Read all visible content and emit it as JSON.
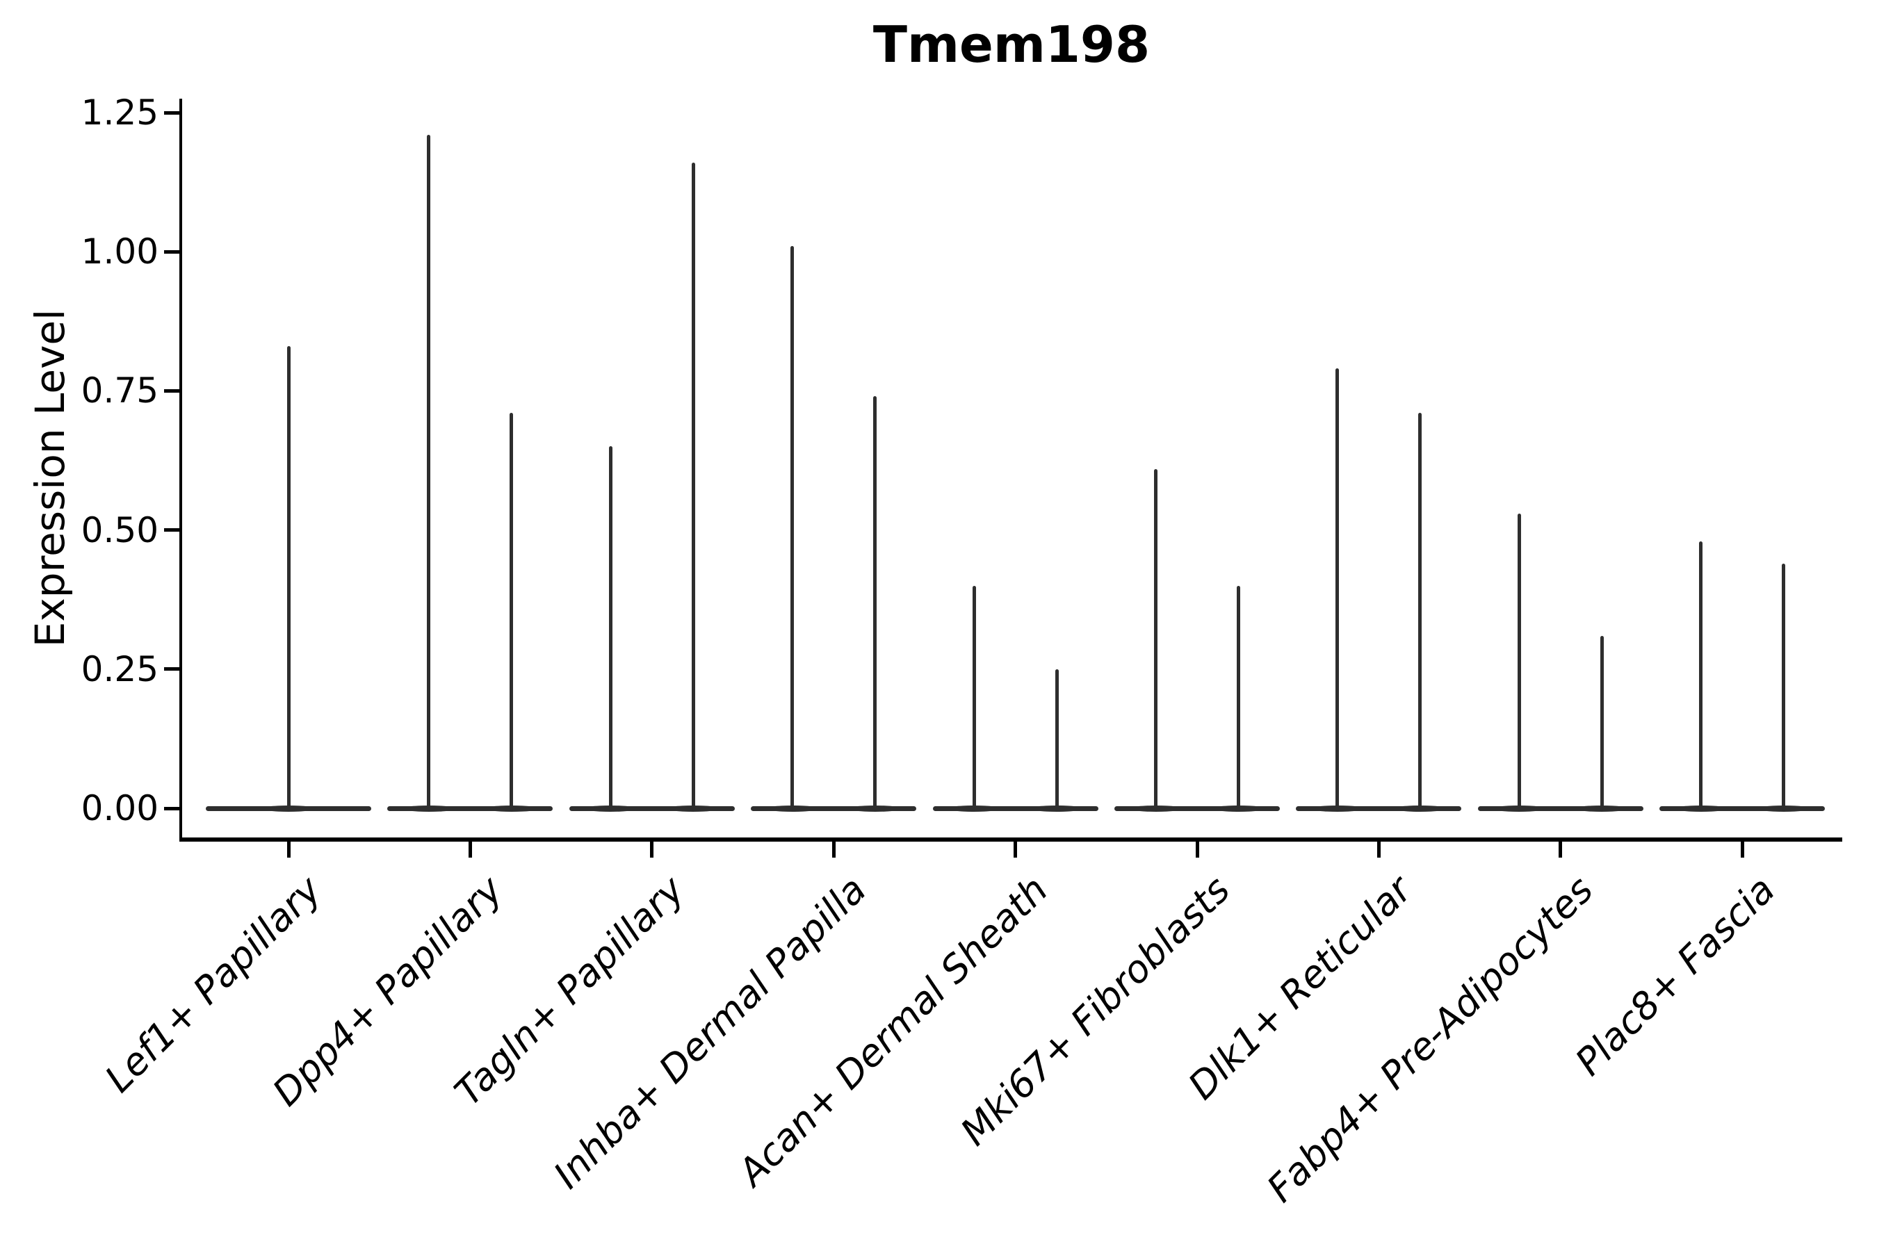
{
  "figure": {
    "background": "#ffffff",
    "violin_color": "#2e2e2e",
    "axis_color": "#000000"
  },
  "chart_data": {
    "type": "violin",
    "title": "Tmem198",
    "ylabel": "Expression Level",
    "xlabel": "",
    "ylim": [
      -0.05,
      1.27
    ],
    "grid": false,
    "legend": null,
    "yticks": [
      "0.00",
      "0.25",
      "0.50",
      "0.75",
      "1.00",
      "1.25"
    ],
    "ytick_values": [
      0,
      0.25,
      0.5,
      0.75,
      1.0,
      1.25
    ],
    "categories": [
      "Lef1+ Papillary",
      "Dpp4+ Papillary",
      "Tagln+ Papillary",
      "Inhba+ Dermal Papilla",
      "Acan+ Dermal Sheath",
      "Mki67+ Fibroblasts",
      "Dlk1+ Reticular",
      "Fabp4+ Pre-Adipocytes",
      "Plac8+ Fascia"
    ],
    "violins": [
      {
        "category": "Lef1+ Papillary",
        "peaks": [
          0.83
        ]
      },
      {
        "category": "Dpp4+ Papillary",
        "peaks": [
          1.21,
          0.71
        ]
      },
      {
        "category": "Tagln+ Papillary",
        "peaks": [
          0.65,
          1.16
        ]
      },
      {
        "category": "Inhba+ Dermal Papilla",
        "peaks": [
          1.01,
          0.74
        ]
      },
      {
        "category": "Acan+ Dermal Sheath",
        "peaks": [
          0.4,
          0.25
        ]
      },
      {
        "category": "Mki67+ Fibroblasts",
        "peaks": [
          0.61,
          0.4
        ]
      },
      {
        "category": "Dlk1+ Reticular",
        "peaks": [
          0.79,
          0.71
        ]
      },
      {
        "category": "Fabp4+ Pre-Adipocytes",
        "peaks": [
          0.53,
          0.31
        ]
      },
      {
        "category": "Plac8+ Fascia",
        "peaks": [
          0.48,
          0.44
        ]
      }
    ],
    "description": "Violin plot: each violin is collapsed at expression 0 (wide flat base) with thin vertical peaks rising to the category maxima."
  }
}
